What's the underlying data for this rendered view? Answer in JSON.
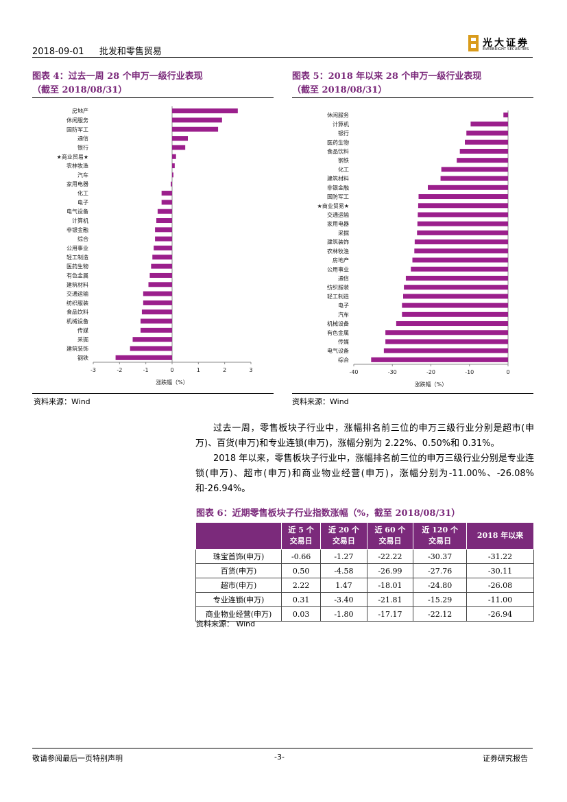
{
  "header": {
    "date": "2018-09-01",
    "section": "批发和零售贸易",
    "logo_cn": "光大证券",
    "logo_en": "EVERBRIGHT SECURITIES"
  },
  "figure4": {
    "title_line1": "图表 4：过去一周 28 个申万一级行业表现",
    "title_line2": "（截至 2018/08/31）",
    "source": "资料来源：Wind"
  },
  "figure5": {
    "title_line1": "图表 5：2018 年以来 28 个申万一级行业表现",
    "title_line2": "（截至 2018/08/31）",
    "source": "资料来源：Wind"
  },
  "chart_data": [
    {
      "type": "bar",
      "orientation": "horizontal",
      "categories": [
        "房地产",
        "休闲服务",
        "国防军工",
        "通信",
        "银行",
        "★商业贸易★",
        "农林牧渔",
        "汽车",
        "家用电器",
        "化工",
        "电子",
        "电气设备",
        "计算机",
        "非银金融",
        "综合",
        "公用事业",
        "轻工制造",
        "医药生物",
        "有色金属",
        "建筑材料",
        "交通运输",
        "纺织服装",
        "食品饮料",
        "机械设备",
        "传媒",
        "采掘",
        "建筑装饰",
        "钢铁"
      ],
      "values": [
        2.5,
        1.9,
        1.75,
        0.6,
        0.5,
        0.15,
        0.1,
        0.05,
        -0.05,
        -0.4,
        -0.4,
        -0.55,
        -0.6,
        -0.65,
        -0.65,
        -0.7,
        -0.75,
        -0.8,
        -0.85,
        -0.9,
        -1.1,
        -1.1,
        -1.15,
        -1.2,
        -1.2,
        -1.5,
        -1.6,
        -2.15
      ],
      "xlabel": "涨跌幅（%）",
      "xlim": [
        -3,
        3
      ],
      "xticks": [
        "-3",
        "-2",
        "-1",
        "0",
        "1",
        "2",
        "3"
      ],
      "color": "#9b1f8c",
      "grid": false
    },
    {
      "type": "bar",
      "orientation": "horizontal",
      "categories": [
        "休闲服务",
        "计算机",
        "银行",
        "医药生物",
        "食品饮料",
        "钢铁",
        "化工",
        "建筑材料",
        "非银金融",
        "国防军工",
        "★商业贸易★",
        "交通运输",
        "家用电器",
        "采掘",
        "建筑装饰",
        "农林牧渔",
        "房地产",
        "公用事业",
        "通信",
        "纺织服装",
        "轻工制造",
        "电子",
        "汽车",
        "机械设备",
        "有色金属",
        "传媒",
        "电气设备",
        "综合"
      ],
      "values": [
        -1.2,
        -9.7,
        -10.8,
        -11.2,
        -12.5,
        -13.3,
        -17.3,
        -17.5,
        -20.8,
        -23.2,
        -23.3,
        -23.4,
        -23.5,
        -23.6,
        -24.2,
        -24.3,
        -24.8,
        -25.2,
        -26.5,
        -27.0,
        -27.2,
        -27.5,
        -27.5,
        -29.0,
        -31.8,
        -31.8,
        -32.2,
        -35.5
      ],
      "xlabel": "涨跌幅（%）",
      "xlim": [
        -40,
        0
      ],
      "xticks": [
        "-40",
        "-30",
        "-20",
        "-10",
        "0"
      ],
      "color": "#9b1f8c",
      "grid": false
    }
  ],
  "paragraph": [
    "过去一周，零售板块子行业中，涨幅排名前三位的申万三级行业分别是超市(申万)、百货(申万)和专业连锁(申万)，涨幅分别为 2.22%、0.50%和 0.31%。",
    "2018 年以来，零售板块子行业中，涨幅排名前三位的申万三级行业分别是专业连锁(申万)、超市(申万)和商业物业经营(申万)，涨幅分别为-11.00%、-26.08%和-26.94%。"
  ],
  "figure6": {
    "title": "图表 6：近期零售板块子行业指数涨幅（%，截至 2018/08/31）",
    "headers": [
      "",
      "近 5 个\n交易日",
      "近 20 个\n交易日",
      "近 60 个\n交易日",
      "近 120 个\n交易日",
      "2018 年以来"
    ],
    "rows": [
      [
        "珠宝首饰(申万)",
        "-0.66",
        "-1.27",
        "-22.22",
        "-30.37",
        "-31.22"
      ],
      [
        "百货(申万)",
        "0.50",
        "-4.58",
        "-26.99",
        "-27.76",
        "-30.11"
      ],
      [
        "超市(申万)",
        "2.22",
        "1.47",
        "-18.01",
        "-24.80",
        "-26.08"
      ],
      [
        "专业连锁(申万)",
        "0.31",
        "-3.40",
        "-21.81",
        "-15.29",
        "-11.00"
      ],
      [
        "商业物业经营(申万)",
        "0.03",
        "-1.80",
        "-17.17",
        "-22.12",
        "-26.94"
      ]
    ],
    "source": "资料来源：   Wind"
  },
  "footer": {
    "left": "敬请参阅最后一页特别声明",
    "center": "-3-",
    "right": "证券研究报告"
  }
}
